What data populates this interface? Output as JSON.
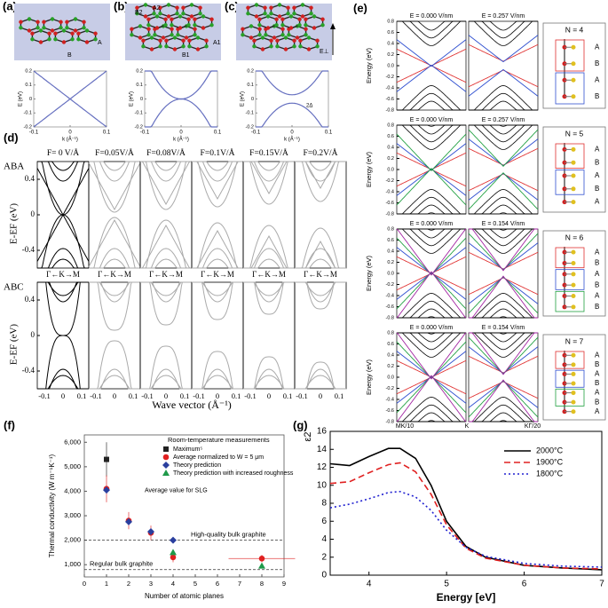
{
  "figure": {
    "panel_a": {
      "label": "(a)",
      "atoms": [
        "A",
        "B"
      ]
    },
    "panel_b": {
      "label": "(b)",
      "atoms": [
        "B2",
        "A2",
        "A1",
        "B1"
      ]
    },
    "panel_c": {
      "label": "(c)",
      "field": "E⊥",
      "gap": "2Δ"
    },
    "small_axes": {
      "ylabel": "E (eV)",
      "xlabel": "k (Å⁻¹)",
      "xticks": [
        -0.1,
        0,
        0.1
      ],
      "yticks": [
        0.2,
        0.1,
        0,
        -0.1,
        -0.2
      ]
    },
    "panel_d": {
      "label": "(d)",
      "fields": [
        "F= 0 V/Å",
        "F=0.05V/Å",
        "F=0.08V/Å",
        "F=0.1V/Å",
        "F=0.15V/Å",
        "F=0.2V/Å"
      ],
      "stackings": [
        "ABA",
        "ABC"
      ],
      "ylabel": "E-EF (eV)",
      "yticks": [
        0.4,
        0,
        -0.4
      ],
      "path": "Γ←K→M",
      "xticks": [
        -0.1,
        0,
        0.1
      ],
      "xlabel": "Wave vector (Å⁻¹)"
    },
    "panel_e": {
      "label": "(e)",
      "ylabel": "Energy (eV)",
      "yticks": [
        0.8,
        0.6,
        0.4,
        0.2,
        {
          "value": 0,
          "label": "0.0"
        },
        -0.2,
        -0.4,
        -0.6,
        -0.8
      ],
      "xlabels": [
        "MK/10",
        "K",
        "KΓ/20"
      ],
      "rows": [
        {
          "n": "N = 4",
          "fields": [
            "E = 0.000 V/nm",
            "E = 0.257 V/nm"
          ],
          "layers": [
            "A",
            "B",
            "A",
            "B"
          ]
        },
        {
          "n": "N = 5",
          "fields": [
            "E = 0.000 V/nm",
            "E = 0.257 V/nm"
          ],
          "layers": [
            "A",
            "B",
            "A",
            "B",
            "A"
          ]
        },
        {
          "n": "N = 6",
          "fields": [
            "E = 0.000 V/nm",
            "E = 0.154 V/nm"
          ],
          "layers": [
            "A",
            "B",
            "A",
            "B",
            "A",
            "B"
          ]
        },
        {
          "n": "N = 7",
          "fields": [
            "E = 0.000 V/nm",
            "E = 0.154 V/nm"
          ],
          "layers": [
            "A",
            "B",
            "A",
            "B",
            "A",
            "B",
            "A"
          ]
        }
      ]
    }
  },
  "chart_data": [
    {
      "type": "scatter",
      "label": "(f)",
      "legend_title": "Room-temperature measurements",
      "annotation": "Average value for SLG",
      "xlabel": "Number of atomic planes",
      "ylabel": "Thermal conductivity (W m⁻¹K⁻¹)",
      "xlim": [
        0,
        9
      ],
      "ylim": [
        500,
        6300
      ],
      "xticks": [
        0,
        1,
        2,
        3,
        4,
        5,
        6,
        7,
        8,
        9
      ],
      "yticks": [
        {
          "value": 1000,
          "label": "1,000"
        },
        {
          "value": 2000,
          "label": "2,000"
        },
        {
          "value": 3000,
          "label": "3,000"
        },
        {
          "value": 4000,
          "label": "4,000"
        },
        {
          "value": 5000,
          "label": "5,000"
        },
        {
          "value": 6000,
          "label": "6,000"
        }
      ],
      "hlines": [
        {
          "value": 2000,
          "label": "High-quality bulk graphite"
        },
        {
          "value": 800,
          "label": "Regular bulk graphite"
        }
      ],
      "series": [
        {
          "name": "Maximum⁵",
          "color": "#222222",
          "marker": "square",
          "x": [
            1
          ],
          "values": [
            5300
          ],
          "errors": [
            700
          ]
        },
        {
          "name": "Average normalized to W = 5 μm",
          "color": "#e02020",
          "marker": "circle",
          "x": [
            1,
            2,
            3,
            4,
            8
          ],
          "values": [
            4100,
            2800,
            2300,
            1300,
            1250
          ],
          "errors": [
            550,
            350,
            300,
            200,
            150
          ],
          "xerrors": [
            null,
            null,
            null,
            null,
            1.5
          ]
        },
        {
          "name": "Theory prediction",
          "color": "#2a3f9e",
          "marker": "diamond",
          "x": [
            1,
            2,
            3,
            4
          ],
          "values": [
            4050,
            2750,
            2350,
            2000
          ]
        },
        {
          "name": "Theory prediction with increased roughness",
          "color": "#1f9a4a",
          "marker": "triangle",
          "x": [
            4,
            8
          ],
          "values": [
            1500,
            950
          ]
        }
      ]
    },
    {
      "type": "line",
      "label": "(g)",
      "xlabel": "Energy [eV]",
      "ylabel": "ε2",
      "xlim": [
        3.5,
        7
      ],
      "ylim": [
        0,
        16
      ],
      "xticks": [
        4,
        5,
        6,
        7
      ],
      "yticks": [
        0,
        2,
        4,
        6,
        8,
        10,
        12,
        14,
        16
      ],
      "legend": "upper right",
      "x": [
        3.5,
        3.75,
        4.0,
        4.25,
        4.4,
        4.6,
        4.8,
        5.0,
        5.25,
        5.5,
        6,
        6.5,
        7
      ],
      "series": [
        {
          "name": "2000°C",
          "color": "#000000",
          "dash": "solid",
          "values": [
            12.4,
            12.2,
            13.2,
            14.1,
            14.1,
            13.0,
            10.0,
            6.0,
            3.2,
            2.0,
            1.1,
            0.8,
            0.6
          ]
        },
        {
          "name": "1900°C",
          "color": "#e02020",
          "dash": "dashed",
          "values": [
            10.2,
            10.4,
            11.4,
            12.3,
            12.5,
            11.5,
            9.0,
            5.6,
            3.0,
            1.9,
            1.1,
            0.8,
            0.7
          ]
        },
        {
          "name": "1800°C",
          "color": "#2020d0",
          "dash": "dotted",
          "values": [
            7.5,
            7.9,
            8.5,
            9.2,
            9.3,
            8.7,
            7.2,
            5.0,
            3.1,
            2.1,
            1.3,
            1.0,
            0.9
          ]
        }
      ]
    }
  ]
}
